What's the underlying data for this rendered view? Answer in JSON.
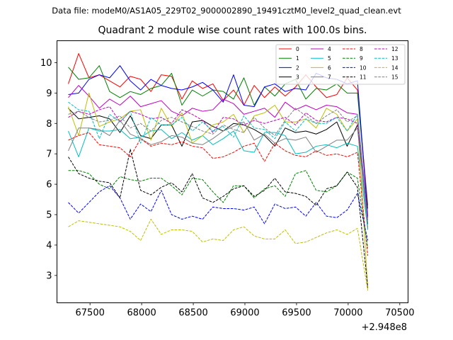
{
  "header": {
    "data_file": "Data file: modeM0/AS1A05_229T02_9000002890_19491cztM0_level2_quad_clean.evt"
  },
  "chart_data": {
    "type": "line",
    "title": "Quadrant 2 module wise count rates with 100.0s bins.",
    "xlabel": "",
    "ylabel": "",
    "offset_label": "+2.948e8",
    "xlim": [
      67180,
      70580
    ],
    "ylim": [
      2.1,
      10.72
    ],
    "x_ticks": [
      67500,
      68000,
      68500,
      69000,
      69500,
      70000,
      70500
    ],
    "y_ticks": [
      3,
      4,
      5,
      6,
      7,
      8,
      9,
      10
    ],
    "x_start": 67290,
    "x_step": 100,
    "legend_position": "top-right",
    "series": [
      {
        "name": "0",
        "color": "#ff0000",
        "dash": "solid",
        "values": [
          9.3,
          10.3,
          9.5,
          9.6,
          9.4,
          9.2,
          9.55,
          9.45,
          9.05,
          9.6,
          9.55,
          8.8,
          9.4,
          9.15,
          9.3,
          8.75,
          9.1,
          8.6,
          9.25,
          8.85,
          9.2,
          8.9,
          9.2,
          9.6,
          9.2,
          8.85,
          8.95,
          9.5,
          9.1,
          5.3
        ]
      },
      {
        "name": "1",
        "color": "#008000",
        "dash": "solid",
        "values": [
          9.85,
          9.45,
          9.5,
          9.9,
          9.05,
          8.85,
          9.05,
          8.95,
          9.15,
          9.25,
          9.65,
          8.6,
          9.1,
          8.9,
          9.1,
          9.05,
          8.8,
          9.5,
          8.6,
          9.2,
          8.9,
          9.3,
          9.45,
          8.8,
          9.15,
          9.1,
          9.3,
          9.0,
          9.0,
          5.2
        ]
      },
      {
        "name": "2",
        "color": "#0000ff",
        "dash": "solid",
        "values": [
          8.95,
          9.0,
          9.45,
          9.6,
          9.5,
          9.9,
          9.4,
          9.1,
          9.45,
          9.25,
          9.15,
          9.1,
          9.2,
          9.35,
          9.1,
          8.7,
          9.6,
          8.6,
          8.55,
          9.2,
          9.3,
          9.05,
          9.15,
          9.1,
          9.65,
          9.5,
          9.45,
          9.3,
          9.4,
          4.95
        ]
      },
      {
        "name": "3",
        "color": "#000000",
        "dash": "solid",
        "values": [
          8.5,
          8.15,
          8.2,
          8.25,
          8.15,
          7.7,
          8.25,
          7.6,
          7.5,
          7.95,
          7.95,
          7.25,
          8.05,
          8.1,
          7.9,
          7.75,
          8.0,
          7.95,
          7.8,
          7.6,
          7.25,
          7.85,
          7.7,
          7.75,
          7.65,
          7.8,
          8.05,
          7.25,
          7.95,
          4.7
        ]
      },
      {
        "name": "4",
        "color": "#c000c0",
        "dash": "solid",
        "values": [
          8.85,
          9.25,
          8.9,
          8.5,
          8.8,
          8.6,
          8.9,
          8.55,
          8.65,
          8.75,
          8.4,
          8.25,
          8.5,
          8.4,
          8.45,
          8.8,
          8.65,
          8.3,
          8.4,
          8.5,
          8.2,
          8.7,
          8.45,
          8.6,
          8.45,
          8.6,
          8.55,
          8.35,
          8.3,
          4.9
        ]
      },
      {
        "name": "5",
        "color": "#00bfbf",
        "dash": "solid",
        "values": [
          7.75,
          6.9,
          7.85,
          7.75,
          7.75,
          7.8,
          7.5,
          7.55,
          7.75,
          7.8,
          7.5,
          7.7,
          7.45,
          7.6,
          7.3,
          7.5,
          7.75,
          7.1,
          7.05,
          7.7,
          7.7,
          7.6,
          7.0,
          7.05,
          7.25,
          7.3,
          7.2,
          7.35,
          7.25,
          4.5
        ]
      },
      {
        "name": "6",
        "color": "#bfbf00",
        "dash": "solid",
        "values": [
          8.55,
          7.6,
          9.0,
          7.9,
          8.05,
          8.15,
          8.4,
          8.45,
          7.45,
          8.5,
          7.9,
          8.35,
          7.35,
          7.6,
          7.95,
          8.05,
          8.3,
          7.7,
          8.25,
          8.35,
          8.6,
          8.05,
          8.05,
          8.15,
          7.85,
          8.5,
          8.3,
          7.75,
          8.15,
          2.55
        ]
      },
      {
        "name": "7",
        "color": "#808080",
        "dash": "solid",
        "values": [
          7.1,
          7.85,
          7.85,
          7.8,
          7.6,
          8.1,
          7.65,
          7.5,
          7.3,
          7.4,
          7.6,
          7.55,
          7.35,
          7.3,
          7.5,
          7.75,
          7.9,
          8.05,
          7.45,
          7.65,
          7.35,
          7.5,
          7.45,
          7.55,
          7.05,
          7.25,
          7.45,
          7.45,
          7.85,
          4.55
        ]
      },
      {
        "name": "8",
        "color": "#ff0000",
        "dash": "dashed",
        "values": [
          7.45,
          7.6,
          7.7,
          7.3,
          7.25,
          7.2,
          6.9,
          7.5,
          7.25,
          7.35,
          7.3,
          7.4,
          7.25,
          7.2,
          6.85,
          6.9,
          7.05,
          7.25,
          7.35,
          6.75,
          7.35,
          7.1,
          6.95,
          6.9,
          7.1,
          6.95,
          7.0,
          6.9,
          7.05,
          3.65
        ]
      },
      {
        "name": "9",
        "color": "#008000",
        "dash": "dashed",
        "values": [
          6.45,
          6.45,
          6.35,
          6.0,
          5.85,
          6.25,
          6.15,
          6.1,
          6.2,
          6.2,
          5.95,
          5.65,
          6.2,
          6.15,
          5.75,
          5.4,
          5.95,
          5.95,
          5.55,
          5.85,
          5.95,
          5.6,
          6.35,
          6.45,
          5.8,
          5.75,
          5.95,
          6.4,
          6.2,
          3.9
        ]
      },
      {
        "name": "10",
        "color": "#0000ff",
        "dash": "dashed",
        "values": [
          5.4,
          5.05,
          5.4,
          5.75,
          5.95,
          5.55,
          4.85,
          5.35,
          5.1,
          5.8,
          5.0,
          4.85,
          4.95,
          4.85,
          5.25,
          5.2,
          5.2,
          5.15,
          5.25,
          4.7,
          5.35,
          5.2,
          5.25,
          4.95,
          5.4,
          4.95,
          4.9,
          5.15,
          5.7,
          4.15
        ]
      },
      {
        "name": "11",
        "color": "#000000",
        "dash": "dashed",
        "values": [
          6.9,
          6.35,
          6.2,
          6.1,
          6.05,
          5.55,
          7.15,
          5.8,
          5.65,
          5.9,
          6.05,
          5.75,
          6.35,
          5.55,
          5.4,
          5.6,
          5.85,
          5.95,
          5.6,
          5.8,
          6.2,
          5.75,
          5.7,
          5.6,
          5.3,
          5.85,
          5.95,
          6.4,
          5.9,
          2.6
        ]
      },
      {
        "name": "12",
        "color": "#c000c0",
        "dash": "dashed",
        "values": [
          8.2,
          8.4,
          8.3,
          8.45,
          8.55,
          8.05,
          8.4,
          8.3,
          8.15,
          8.2,
          8.0,
          8.45,
          8.3,
          8.1,
          7.7,
          8.2,
          8.15,
          7.95,
          8.1,
          8.0,
          8.1,
          8.2,
          7.95,
          8.35,
          8.1,
          8.05,
          8.2,
          8.15,
          8.0,
          4.8
        ]
      },
      {
        "name": "13",
        "color": "#00bfbf",
        "dash": "dashed",
        "values": [
          8.7,
          8.45,
          8.4,
          7.5,
          8.3,
          8.05,
          8.4,
          7.35,
          8.2,
          7.95,
          7.95,
          8.2,
          7.75,
          8.05,
          7.75,
          7.9,
          7.55,
          8.25,
          7.85,
          7.8,
          7.5,
          8.05,
          7.75,
          8.15,
          8.0,
          8.0,
          8.2,
          7.75,
          8.3,
          4.6
        ]
      },
      {
        "name": "14",
        "color": "#bfbf00",
        "dash": "dashed",
        "values": [
          4.6,
          4.8,
          4.75,
          4.7,
          4.65,
          4.6,
          4.45,
          4.15,
          4.85,
          4.35,
          4.5,
          4.5,
          4.45,
          4.1,
          4.2,
          4.15,
          4.5,
          4.6,
          4.3,
          4.2,
          4.2,
          4.5,
          4.05,
          4.1,
          4.25,
          4.4,
          4.5,
          4.35,
          4.55,
          2.5
        ]
      },
      {
        "name": "15",
        "color": "#808080",
        "dash": "dashed",
        "values": [
          8.3,
          8.4,
          8.2,
          8.05,
          8.1,
          8.25,
          7.85,
          8.0,
          7.75,
          8.1,
          8.2,
          8.05,
          7.9,
          7.75,
          7.65,
          7.95,
          7.8,
          7.7,
          8.2,
          7.85,
          7.6,
          8.1,
          8.5,
          8.25,
          8.0,
          8.25,
          8.45,
          8.05,
          8.25,
          4.7
        ]
      }
    ]
  }
}
